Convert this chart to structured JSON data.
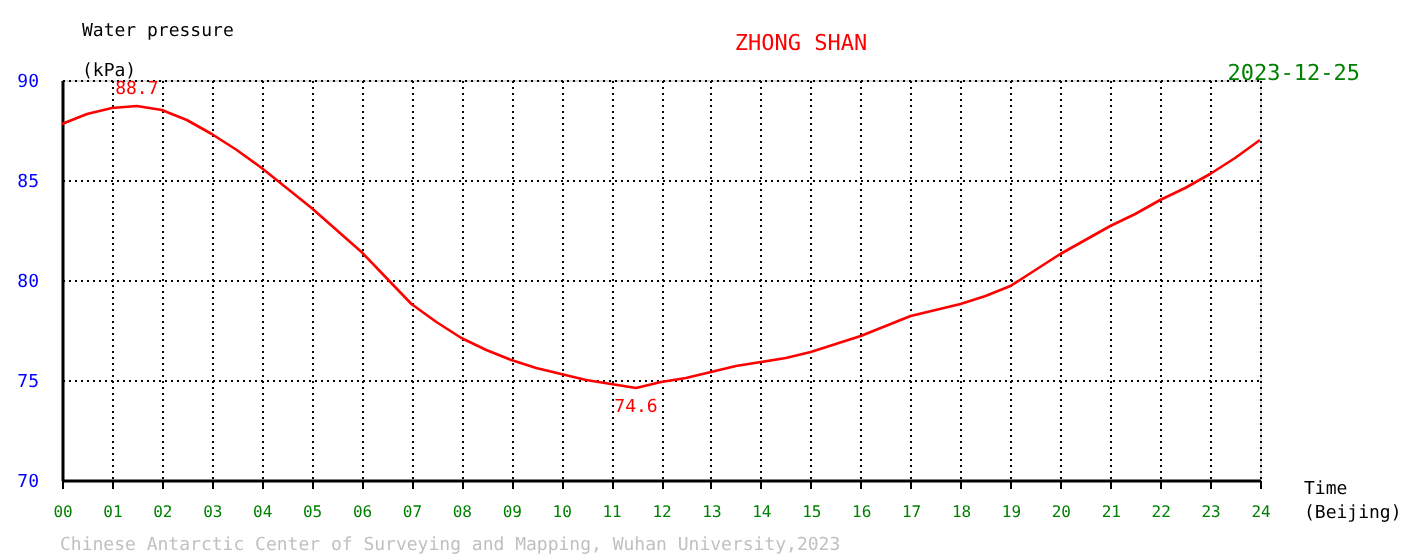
{
  "chart_data": {
    "type": "line",
    "title": "ZHONG SHAN",
    "ylabel": "Water pressure\n(kPa)",
    "xlabel": "Time\n(Beijing)",
    "x": [
      0,
      0.5,
      1,
      1.5,
      2,
      2.5,
      3,
      3.5,
      4,
      4.5,
      5,
      5.5,
      6,
      6.5,
      7,
      7.5,
      8,
      8.5,
      9,
      9.5,
      10,
      10.5,
      11,
      11.5,
      12,
      12.5,
      13,
      13.5,
      14,
      14.5,
      15,
      15.5,
      16,
      16.5,
      17,
      17.5,
      18,
      18.5,
      19,
      19.5,
      20,
      20.5,
      21,
      21.5,
      22,
      22.5,
      23,
      23.5,
      24
    ],
    "series": [
      {
        "color": "#ff0000",
        "values": [
          87.8,
          88.3,
          88.6,
          88.7,
          88.5,
          88.0,
          87.3,
          86.5,
          85.6,
          84.6,
          83.6,
          82.5,
          81.4,
          80.1,
          78.8,
          77.9,
          77.1,
          76.5,
          76.0,
          75.6,
          75.3,
          75.0,
          74.8,
          74.6,
          74.9,
          75.1,
          75.4,
          75.7,
          75.9,
          76.1,
          76.4,
          76.8,
          77.2,
          77.7,
          78.2,
          78.5,
          78.8,
          79.2,
          79.7,
          80.5,
          81.3,
          82.0,
          82.7,
          83.3,
          84.0,
          84.6,
          85.3,
          86.1,
          87.0
        ]
      }
    ],
    "xlim": [
      0,
      24
    ],
    "ylim": [
      70,
      90
    ],
    "xticks": [
      {
        "value": 0,
        "label": "00"
      },
      {
        "value": 1,
        "label": "01"
      },
      {
        "value": 2,
        "label": "02"
      },
      {
        "value": 3,
        "label": "03"
      },
      {
        "value": 4,
        "label": "04"
      },
      {
        "value": 5,
        "label": "05"
      },
      {
        "value": 6,
        "label": "06"
      },
      {
        "value": 7,
        "label": "07"
      },
      {
        "value": 8,
        "label": "08"
      },
      {
        "value": 9,
        "label": "09"
      },
      10,
      11,
      12,
      13,
      14,
      15,
      16,
      17,
      18,
      19,
      20,
      21,
      22,
      23,
      24
    ],
    "yticks": [
      70,
      75,
      80,
      85,
      90
    ],
    "annotations": [
      "2023-12-25",
      "Chinese Antarctic Center of Surveying and Mapping, Wuhan University,2023",
      {
        "text": "88.7",
        "x": 1.5,
        "y": 88.7
      },
      {
        "text": "74.6",
        "x": 11.5,
        "y": 74.6
      }
    ],
    "grid": true,
    "marker": "none",
    "line_style": "solid"
  }
}
